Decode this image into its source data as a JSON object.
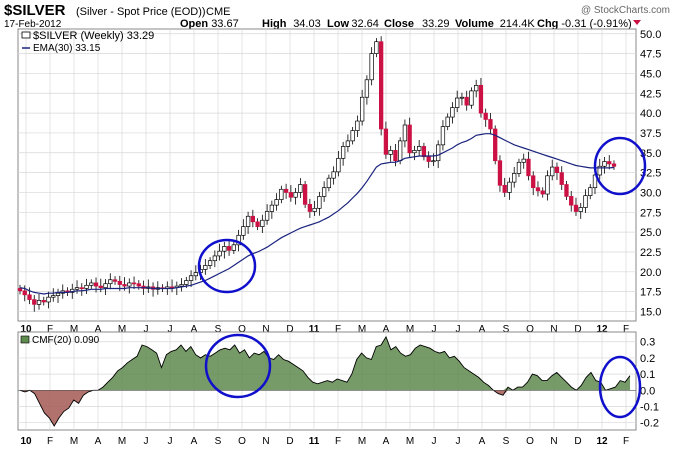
{
  "header": {
    "symbol": "$SILVER",
    "name": "(Silver - Spot Price (EOD))",
    "exchange": "CME",
    "watermark": "@ StockCharts.com",
    "date": "17-Feb-2012",
    "quote": [
      {
        "label": "Open",
        "value": "33.67"
      },
      {
        "label": "High",
        "value": "34.03"
      },
      {
        "label": "Low",
        "value": "32.64"
      },
      {
        "label": "Close",
        "value": "33.29"
      },
      {
        "label": "Volume",
        "value": "214.4K"
      },
      {
        "label": "Chg",
        "value": "-0.31 (-0.91%)"
      }
    ]
  },
  "colors": {
    "up": "#ffffff",
    "down": "#cc1144",
    "ema": "#1a237e",
    "cmf_pos": "#5e8a4e",
    "cmf_neg": "#a8625c",
    "circle": "#1010cc"
  },
  "chart_data": [
    {
      "type": "candlestick",
      "panel": "price",
      "legend": [
        "$SILVER (Weekly) 33.29",
        "EMA(30) 33.15"
      ],
      "x_ticks": [
        "10",
        "F",
        "M",
        "A",
        "M",
        "J",
        "J",
        "A",
        "S",
        "O",
        "N",
        "D",
        "11",
        "F",
        "M",
        "A",
        "M",
        "J",
        "J",
        "A",
        "S",
        "O",
        "N",
        "D",
        "12",
        "F"
      ],
      "y_ticks": [
        "50.0",
        "47.5",
        "45.0",
        "42.5",
        "40.0",
        "37.5",
        "35.0",
        "32.5",
        "30.0",
        "27.5",
        "25.0",
        "22.5",
        "20.0",
        "17.5",
        "15.0"
      ],
      "ylim": [
        15,
        50
      ],
      "grid": true,
      "series": [
        {
          "name": "$SILVER (Weekly)",
          "closes": [
            17.6,
            17.1,
            16.5,
            15.9,
            16.4,
            16.2,
            16.8,
            17.0,
            17.3,
            17.6,
            17.4,
            17.8,
            18.0,
            17.9,
            18.3,
            18.6,
            18.2,
            18.0,
            18.5,
            19.0,
            18.8,
            18.4,
            18.2,
            18.6,
            18.5,
            18.2,
            17.9,
            18.1,
            17.8,
            18.0,
            17.9,
            18.1,
            18.0,
            18.2,
            18.4,
            18.9,
            19.5,
            19.9,
            20.3,
            20.8,
            21.4,
            22.0,
            22.6,
            23.2,
            22.7,
            23.4,
            24.6,
            25.7,
            27.0,
            26.3,
            25.7,
            26.5,
            27.6,
            28.4,
            29.1,
            30.4,
            30.0,
            29.4,
            30.0,
            31.0,
            28.5,
            27.6,
            28.0,
            29.5,
            30.6,
            31.8,
            32.6,
            34.3,
            35.8,
            36.5,
            37.8,
            39.0,
            42.0,
            44.2,
            47.5,
            49.0,
            38.0,
            34.8,
            35.3,
            34.0,
            36.5,
            38.5,
            35.0,
            35.3,
            35.8,
            34.5,
            33.9,
            34.0,
            36.0,
            38.3,
            39.5,
            40.7,
            41.9,
            42.0,
            41.0,
            42.8,
            43.5,
            40.0,
            39.2,
            38.0,
            34.0,
            30.9,
            30.0,
            31.3,
            32.4,
            33.8,
            34.2,
            32.1,
            30.6,
            30.2,
            29.8,
            32.1,
            33.2,
            32.5,
            31.0,
            29.5,
            28.4,
            27.6,
            28.1,
            29.6,
            30.6,
            32.2,
            33.3,
            33.9,
            33.6,
            33.29
          ]
        },
        {
          "name": "EMA(30)",
          "closes": [
            18.0,
            17.9,
            17.6,
            17.4,
            17.3,
            17.2,
            17.3,
            17.3,
            17.4,
            17.4,
            17.4,
            17.5,
            17.6,
            17.6,
            17.7,
            17.8,
            17.8,
            17.8,
            17.9,
            17.9,
            17.9,
            17.9,
            17.9,
            18.0,
            18.0,
            18.0,
            18.0,
            18.0,
            17.9,
            17.9,
            17.9,
            17.9,
            17.9,
            18.0,
            18.1,
            18.2,
            18.3,
            18.5,
            18.7,
            18.9,
            19.2,
            19.5,
            19.8,
            20.1,
            20.4,
            20.8,
            21.2,
            21.6,
            22.0,
            22.3,
            22.5,
            22.8,
            23.1,
            23.5,
            23.9,
            24.3,
            24.6,
            24.9,
            25.2,
            25.5,
            25.7,
            25.9,
            26.1,
            26.3,
            26.6,
            26.9,
            27.3,
            27.7,
            28.2,
            28.7,
            29.3,
            29.9,
            30.6,
            31.4,
            32.3,
            33.2,
            33.6,
            33.7,
            33.8,
            33.8,
            34.0,
            34.3,
            34.4,
            34.5,
            34.6,
            34.6,
            34.6,
            34.6,
            34.7,
            35.0,
            35.3,
            35.6,
            36.0,
            36.3,
            36.5,
            36.8,
            37.2,
            37.3,
            37.4,
            37.4,
            37.2,
            36.9,
            36.6,
            36.3,
            36.0,
            35.8,
            35.6,
            35.4,
            35.2,
            35.0,
            34.8,
            34.6,
            34.4,
            34.2,
            34.0,
            33.8,
            33.6,
            33.4,
            33.3,
            33.2,
            33.1,
            33.1,
            33.1,
            33.1,
            33.1,
            33.15
          ]
        }
      ]
    },
    {
      "type": "area",
      "panel": "indicator",
      "legend": [
        "CMF(20) 0.090"
      ],
      "x_ticks": [
        "10",
        "F",
        "M",
        "A",
        "M",
        "J",
        "J",
        "A",
        "S",
        "O",
        "N",
        "D",
        "11",
        "F",
        "M",
        "A",
        "M",
        "J",
        "J",
        "A",
        "S",
        "O",
        "N",
        "D",
        "12",
        "F"
      ],
      "y_ticks": [
        "0.3",
        "0.2",
        "0.1",
        "0.0",
        "-0.1",
        "-0.2"
      ],
      "ylim": [
        -0.25,
        0.35
      ],
      "grid": true,
      "series": [
        {
          "name": "CMF(20)",
          "values": [
            0.0,
            -0.01,
            0.0,
            -0.02,
            -0.08,
            -0.14,
            -0.17,
            -0.22,
            -0.17,
            -0.13,
            -0.11,
            -0.06,
            -0.08,
            -0.03,
            -0.01,
            0.0,
            0.0,
            0.02,
            0.05,
            0.08,
            0.12,
            0.14,
            0.17,
            0.19,
            0.21,
            0.28,
            0.27,
            0.25,
            0.23,
            0.14,
            0.22,
            0.24,
            0.25,
            0.28,
            0.24,
            0.27,
            0.22,
            0.2,
            0.22,
            0.21,
            0.23,
            0.25,
            0.26,
            0.25,
            0.28,
            0.23,
            0.25,
            0.2,
            0.23,
            0.22,
            0.24,
            0.2,
            0.19,
            0.22,
            0.19,
            0.18,
            0.16,
            0.14,
            0.12,
            0.08,
            0.05,
            0.04,
            0.05,
            0.06,
            0.05,
            0.07,
            0.06,
            0.05,
            0.1,
            0.19,
            0.23,
            0.2,
            0.19,
            0.27,
            0.28,
            0.33,
            0.25,
            0.27,
            0.23,
            0.21,
            0.22,
            0.26,
            0.28,
            0.27,
            0.26,
            0.24,
            0.23,
            0.24,
            0.2,
            0.21,
            0.18,
            0.14,
            0.12,
            0.1,
            0.08,
            0.05,
            0.03,
            0.0,
            -0.02,
            -0.03,
            0.02,
            0.0,
            0.02,
            0.02,
            0.05,
            0.1,
            0.09,
            0.06,
            0.06,
            0.09,
            0.11,
            0.08,
            0.05,
            0.02,
            0.0,
            0.03,
            0.08,
            0.11,
            0.06,
            0.05,
            0.0,
            0.01,
            0.02,
            0.06,
            0.05,
            0.09
          ]
        }
      ]
    }
  ]
}
